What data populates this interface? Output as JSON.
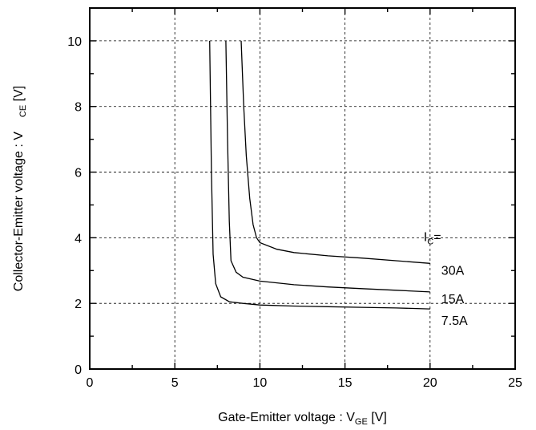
{
  "chart_data": {
    "type": "line",
    "xlabel": {
      "main": "Gate-Emitter voltage : V",
      "sub": "GE",
      "unit": " [V]"
    },
    "ylabel": {
      "main": "Collector-Emitter voltage : V",
      "sub": "CE",
      "unit": " [V]"
    },
    "xlim": [
      0,
      25
    ],
    "ylim": [
      0,
      11
    ],
    "xticks": [
      0,
      5,
      10,
      15,
      20,
      25
    ],
    "yticks": [
      0,
      2,
      4,
      6,
      8,
      10
    ],
    "grid": true,
    "legend_title": {
      "main": "I",
      "sub": "C",
      "suffix": "="
    },
    "series": [
      {
        "name": "30A",
        "points": [
          [
            8.9,
            10.0
          ],
          [
            9.05,
            8.0
          ],
          [
            9.2,
            6.5
          ],
          [
            9.4,
            5.2
          ],
          [
            9.6,
            4.4
          ],
          [
            9.8,
            4.0
          ],
          [
            10.0,
            3.85
          ],
          [
            11.0,
            3.65
          ],
          [
            12.0,
            3.55
          ],
          [
            14.0,
            3.45
          ],
          [
            16.0,
            3.38
          ],
          [
            18.0,
            3.3
          ],
          [
            20.0,
            3.22
          ]
        ]
      },
      {
        "name": "15A",
        "points": [
          [
            8.0,
            10.0
          ],
          [
            8.1,
            7.0
          ],
          [
            8.2,
            4.5
          ],
          [
            8.3,
            3.3
          ],
          [
            8.6,
            2.95
          ],
          [
            9.0,
            2.8
          ],
          [
            10.0,
            2.68
          ],
          [
            12.0,
            2.57
          ],
          [
            14.0,
            2.5
          ],
          [
            16.0,
            2.45
          ],
          [
            18.0,
            2.4
          ],
          [
            20.0,
            2.35
          ]
        ]
      },
      {
        "name": "7.5A",
        "points": [
          [
            7.05,
            10.0
          ],
          [
            7.15,
            6.0
          ],
          [
            7.25,
            3.5
          ],
          [
            7.4,
            2.6
          ],
          [
            7.7,
            2.2
          ],
          [
            8.2,
            2.05
          ],
          [
            9.0,
            2.0
          ],
          [
            10.0,
            1.95
          ],
          [
            12.0,
            1.92
          ],
          [
            14.0,
            1.9
          ],
          [
            16.0,
            1.88
          ],
          [
            18.0,
            1.86
          ],
          [
            20.0,
            1.83
          ]
        ]
      }
    ]
  }
}
